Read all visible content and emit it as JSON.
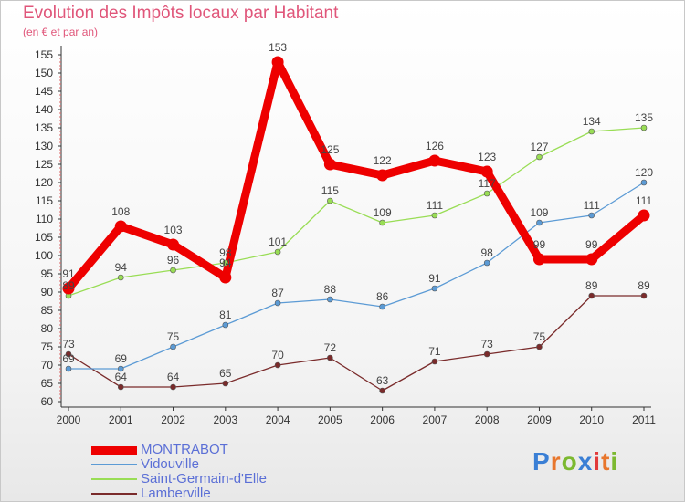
{
  "title": "Evolution des Impôts locaux par Habitant",
  "subtitle": "(en € et par an)",
  "logo": {
    "text": "Proxiti",
    "letters": [
      "P",
      "r",
      "o",
      "x",
      "i",
      "t",
      "i"
    ],
    "colors": [
      "#3a7fd5",
      "#e8762c",
      "#7cb930",
      "#3a7fd5",
      "#e23a3a",
      "#e8762c",
      "#7cb930"
    ]
  },
  "chart_data": {
    "type": "line",
    "title": "Evolution des Impôts locaux par Habitant",
    "subtitle": "(en € et par an)",
    "x": [
      2000,
      2001,
      2002,
      2003,
      2004,
      2005,
      2006,
      2007,
      2008,
      2009,
      2010,
      2011
    ],
    "ylim": [
      60,
      155
    ],
    "yticks": [
      60,
      65,
      70,
      75,
      80,
      85,
      90,
      95,
      100,
      105,
      110,
      115,
      120,
      125,
      130,
      135,
      140,
      145,
      150,
      155
    ],
    "grid": false,
    "legend": "bottom-left",
    "series": [
      {
        "name": "Lamberville",
        "color": "#7a2b2b",
        "values": [
          73,
          64,
          64,
          65,
          70,
          72,
          63,
          71,
          73,
          75,
          89,
          89
        ]
      },
      {
        "name": "Vidouville",
        "color": "#5c9bd5",
        "values": [
          69,
          69,
          75,
          81,
          87,
          88,
          86,
          91,
          98,
          109,
          111,
          120
        ]
      },
      {
        "name": "Saint-Germain-d'Elle",
        "color": "#99dd55",
        "values": [
          89,
          94,
          96,
          98,
          101,
          115,
          109,
          111,
          117,
          127,
          134,
          135
        ]
      },
      {
        "name": "MONTRABOT",
        "color": "#ee0000",
        "values": [
          91,
          108,
          103,
          94,
          153,
          125,
          122,
          126,
          123,
          99,
          99,
          111
        ]
      }
    ]
  },
  "legend": [
    {
      "name": "MONTRABOT",
      "color": "#ee0000"
    },
    {
      "name": "Vidouville",
      "color": "#5c9bd5"
    },
    {
      "name": "Saint-Germain-d'Elle",
      "color": "#99dd55"
    },
    {
      "name": "Lamberville",
      "color": "#7a2b2b"
    }
  ]
}
